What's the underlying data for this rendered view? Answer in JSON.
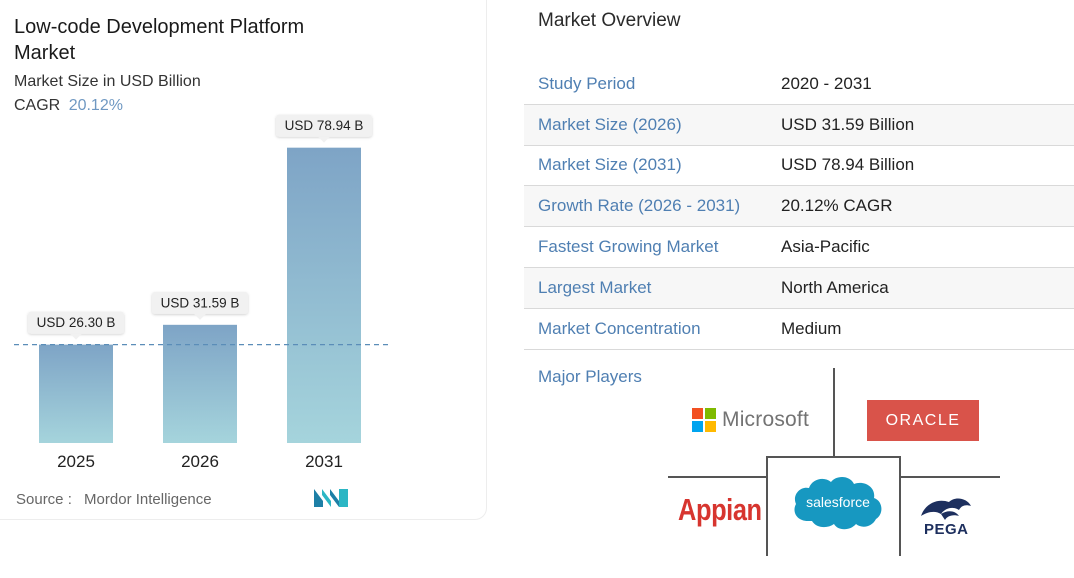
{
  "chart_data": {
    "type": "bar",
    "title": "Low-code Development Platform Market",
    "subtitle": "Market Size in USD Billion",
    "cagr_label": "CAGR",
    "cagr_value": "20.12%",
    "categories": [
      "2025",
      "2026",
      "2031"
    ],
    "values": [
      26.3,
      31.59,
      78.94
    ],
    "data_labels": [
      "USD 26.30 B",
      "USD 31.59 B",
      "USD 78.94 B"
    ],
    "ylim": [
      0,
      85
    ],
    "reference_line_value": 26.3,
    "grid": false,
    "colors": {
      "bar_top": "#7ea4c6",
      "bar_bottom": "#a5d4dc",
      "reference_line": "#5b8db8"
    }
  },
  "source": {
    "label": "Source :",
    "value": "Mordor Intelligence"
  },
  "overview": {
    "title": "Market Overview",
    "rows": [
      {
        "key": "Study Period",
        "value": "2020 - 2031"
      },
      {
        "key": "Market Size (2026)",
        "value": "USD 31.59 Billion"
      },
      {
        "key": "Market Size (2031)",
        "value": "USD 78.94 Billion"
      },
      {
        "key": "Growth Rate (2026 - 2031)",
        "value": "20.12% CAGR"
      },
      {
        "key": "Fastest Growing Market",
        "value": "Asia-Pacific"
      },
      {
        "key": "Largest Market",
        "value": "North America"
      },
      {
        "key": "Market Concentration",
        "value": "Medium"
      }
    ]
  },
  "players": {
    "title": "Major Players",
    "logos": {
      "microsoft": "Microsoft",
      "oracle": "ORACLE",
      "appian": "Appian",
      "salesforce": "salesforce",
      "pega": "PEGA"
    }
  },
  "colors": {
    "accent_blue": "#4f7fb2",
    "oracle_red": "#d9534a",
    "appian_red": "#d7352f",
    "salesforce_blue": "#1798c1",
    "pega_navy": "#1d2f5e"
  }
}
